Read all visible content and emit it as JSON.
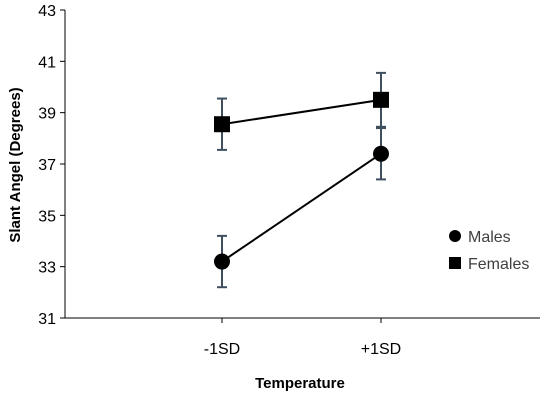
{
  "chart_data": {
    "type": "line",
    "categories": [
      "-1SD",
      "+1SD"
    ],
    "series": [
      {
        "name": "Males",
        "marker": "circle",
        "values": [
          33.2,
          37.4
        ],
        "error": [
          1.0,
          1.0
        ]
      },
      {
        "name": "Females",
        "marker": "square",
        "values": [
          38.55,
          39.5
        ],
        "error": [
          1.0,
          1.05
        ]
      }
    ],
    "xlabel": "Temperature",
    "ylabel": "Slant Angel (Degrees)",
    "ylim": [
      31,
      43
    ],
    "yticks": [
      31,
      33,
      35,
      37,
      39,
      41,
      43
    ],
    "grid": false,
    "legend": "right",
    "colors": {
      "marks": "#000000",
      "error_bars": "#3f4f5f",
      "axis": "#000000"
    }
  }
}
